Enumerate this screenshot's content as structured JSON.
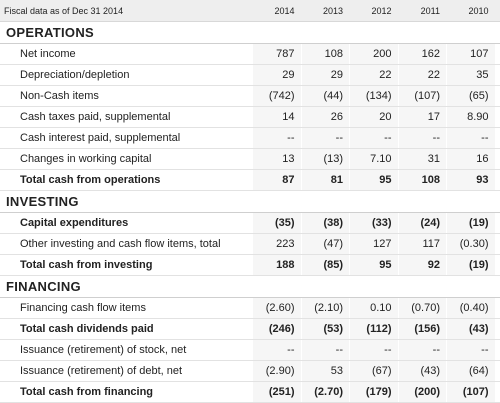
{
  "header": {
    "label": "Fiscal data as of Dec 31 2014",
    "years": [
      "2014",
      "2013",
      "2012",
      "2011",
      "2010"
    ]
  },
  "sections": [
    {
      "title": "OPERATIONS",
      "rows": [
        {
          "label": "Net income",
          "values": [
            "787",
            "108",
            "200",
            "162",
            "107"
          ],
          "bold": false
        },
        {
          "label": "Depreciation/depletion",
          "values": [
            "29",
            "29",
            "22",
            "22",
            "35"
          ],
          "bold": false
        },
        {
          "label": "Non-Cash items",
          "values": [
            "(742)",
            "(44)",
            "(134)",
            "(107)",
            "(65)"
          ],
          "bold": false
        },
        {
          "label": "Cash taxes paid, supplemental",
          "values": [
            "14",
            "26",
            "20",
            "17",
            "8.90"
          ],
          "bold": false
        },
        {
          "label": "Cash interest paid, supplemental",
          "values": [
            "--",
            "--",
            "--",
            "--",
            "--"
          ],
          "bold": false
        },
        {
          "label": "Changes in working capital",
          "values": [
            "13",
            "(13)",
            "7.10",
            "31",
            "16"
          ],
          "bold": false
        },
        {
          "label": "Total cash from operations",
          "values": [
            "87",
            "81",
            "95",
            "108",
            "93"
          ],
          "bold": true
        }
      ]
    },
    {
      "title": "INVESTING",
      "rows": [
        {
          "label": "Capital expenditures",
          "values": [
            "(35)",
            "(38)",
            "(33)",
            "(24)",
            "(19)"
          ],
          "bold": true
        },
        {
          "label": "Other investing and cash flow items, total",
          "values": [
            "223",
            "(47)",
            "127",
            "117",
            "(0.30)"
          ],
          "bold": false
        },
        {
          "label": "Total cash from investing",
          "values": [
            "188",
            "(85)",
            "95",
            "92",
            "(19)"
          ],
          "bold": true
        }
      ]
    },
    {
      "title": "FINANCING",
      "rows": [
        {
          "label": "Financing cash flow items",
          "values": [
            "(2.60)",
            "(2.10)",
            "0.10",
            "(0.70)",
            "(0.40)"
          ],
          "bold": false
        },
        {
          "label": "Total cash dividends paid",
          "values": [
            "(246)",
            "(53)",
            "(112)",
            "(156)",
            "(43)"
          ],
          "bold": true
        },
        {
          "label": "Issuance (retirement) of stock, net",
          "values": [
            "--",
            "--",
            "--",
            "--",
            "--"
          ],
          "bold": false
        },
        {
          "label": "Issuance (retirement) of debt, net",
          "values": [
            "(2.90)",
            "53",
            "(67)",
            "(43)",
            "(64)"
          ],
          "bold": false
        },
        {
          "label": "Total cash from financing",
          "values": [
            "(251)",
            "(2.70)",
            "(179)",
            "(200)",
            "(107)"
          ],
          "bold": true
        }
      ]
    }
  ]
}
